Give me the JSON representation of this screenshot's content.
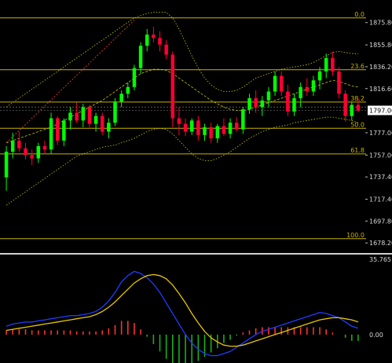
{
  "chart_data": {
    "type": "candlestick",
    "colors": {
      "background": "#000000",
      "bull": "#00ff00",
      "bear": "#ff0033",
      "bollinger": "#c8c800",
      "fib": "#c8b400",
      "trendline": "#c0392b",
      "macd_line": "#1f3cff",
      "signal_line": "#e8c600",
      "hist_pos": "#ff3030",
      "hist_neg": "#18b018",
      "separator": "#d0d0d0"
    },
    "price_axis": {
      "ylim": [
        1672,
        1889
      ],
      "ticks": [
        "1875.80",
        "1855.80",
        "1836.20",
        "1816.60",
        "1797.06",
        "1777.00",
        "1757.00",
        "1737.40",
        "1717.40",
        "1697.80",
        "1678.20"
      ],
      "current_price": "1797.06"
    },
    "fib_levels": [
      {
        "label": "0.0",
        "price": 1880.0
      },
      {
        "label": "23.6",
        "price": 1833.5
      },
      {
        "label": "38.2",
        "price": 1804.5
      },
      {
        "label": "50.0",
        "price": 1781.0
      },
      {
        "label": "61.8",
        "price": 1758.0
      },
      {
        "label": "100.0",
        "price": 1682.0
      }
    ],
    "candles": [
      [
        1737,
        1765,
        1725,
        1760
      ],
      [
        1760,
        1777,
        1754,
        1770
      ],
      [
        1770,
        1778,
        1760,
        1763
      ],
      [
        1763,
        1768,
        1753,
        1757
      ],
      [
        1757,
        1762,
        1748,
        1754
      ],
      [
        1754,
        1768,
        1750,
        1765
      ],
      [
        1765,
        1770,
        1758,
        1762
      ],
      [
        1762,
        1795,
        1758,
        1790
      ],
      [
        1790,
        1792,
        1766,
        1770
      ],
      [
        1770,
        1790,
        1765,
        1788
      ],
      [
        1788,
        1800,
        1780,
        1795
      ],
      [
        1795,
        1804,
        1786,
        1788
      ],
      [
        1788,
        1803,
        1782,
        1800
      ],
      [
        1800,
        1802,
        1782,
        1785
      ],
      [
        1785,
        1795,
        1778,
        1792
      ],
      [
        1792,
        1795,
        1775,
        1778
      ],
      [
        1778,
        1790,
        1772,
        1786
      ],
      [
        1786,
        1808,
        1783,
        1805
      ],
      [
        1805,
        1815,
        1800,
        1812
      ],
      [
        1812,
        1822,
        1808,
        1818
      ],
      [
        1818,
        1838,
        1815,
        1835
      ],
      [
        1835,
        1858,
        1830,
        1855
      ],
      [
        1855,
        1870,
        1850,
        1865
      ],
      [
        1865,
        1872,
        1858,
        1862
      ],
      [
        1862,
        1868,
        1850,
        1856
      ],
      [
        1856,
        1860,
        1843,
        1847
      ],
      [
        1847,
        1850,
        1782,
        1790
      ],
      [
        1790,
        1800,
        1775,
        1785
      ],
      [
        1785,
        1790,
        1774,
        1778
      ],
      [
        1778,
        1790,
        1775,
        1788
      ],
      [
        1788,
        1792,
        1770,
        1775
      ],
      [
        1775,
        1785,
        1770,
        1782
      ],
      [
        1782,
        1786,
        1768,
        1772
      ],
      [
        1772,
        1785,
        1768,
        1783
      ],
      [
        1783,
        1790,
        1774,
        1776
      ],
      [
        1776,
        1790,
        1772,
        1786
      ],
      [
        1786,
        1791,
        1778,
        1780
      ],
      [
        1780,
        1800,
        1776,
        1798
      ],
      [
        1798,
        1812,
        1794,
        1808
      ],
      [
        1808,
        1815,
        1795,
        1800
      ],
      [
        1800,
        1810,
        1792,
        1806
      ],
      [
        1806,
        1818,
        1800,
        1814
      ],
      [
        1814,
        1832,
        1810,
        1828
      ],
      [
        1828,
        1832,
        1810,
        1814
      ],
      [
        1814,
        1820,
        1792,
        1796
      ],
      [
        1796,
        1812,
        1792,
        1808
      ],
      [
        1808,
        1822,
        1800,
        1818
      ],
      [
        1818,
        1826,
        1810,
        1814
      ],
      [
        1814,
        1828,
        1810,
        1824
      ],
      [
        1824,
        1836,
        1816,
        1832
      ],
      [
        1832,
        1848,
        1826,
        1844
      ],
      [
        1844,
        1850,
        1828,
        1832
      ],
      [
        1832,
        1836,
        1808,
        1812
      ],
      [
        1812,
        1815,
        1787,
        1792
      ],
      [
        1792,
        1805,
        1788,
        1802
      ],
      [
        1802,
        1808,
        1796,
        1797
      ]
    ],
    "bollinger": {
      "upper": [
        1800,
        1804,
        1808,
        1812,
        1816,
        1820,
        1824,
        1828,
        1832,
        1836,
        1840,
        1844,
        1848,
        1852,
        1856,
        1860,
        1864,
        1868,
        1872,
        1876,
        1880,
        1882,
        1884,
        1885,
        1885,
        1885,
        1880,
        1870,
        1858,
        1846,
        1835,
        1826,
        1820,
        1816,
        1814,
        1814,
        1815,
        1818,
        1822,
        1826,
        1828,
        1830,
        1832,
        1834,
        1835,
        1836,
        1837,
        1838,
        1840,
        1843,
        1846,
        1849,
        1850,
        1849,
        1848,
        1848
      ],
      "middle": [
        1768,
        1770,
        1772,
        1774,
        1776,
        1778,
        1780,
        1782,
        1785,
        1788,
        1791,
        1794,
        1797,
        1800,
        1803,
        1806,
        1810,
        1814,
        1818,
        1822,
        1826,
        1830,
        1832,
        1834,
        1834,
        1833,
        1830,
        1826,
        1822,
        1818,
        1814,
        1810,
        1806,
        1803,
        1800,
        1798,
        1797,
        1797,
        1798,
        1800,
        1802,
        1804,
        1806,
        1808,
        1810,
        1812,
        1814,
        1816,
        1818,
        1820,
        1822,
        1824,
        1823,
        1821,
        1819,
        1818
      ],
      "lower": [
        1712,
        1716,
        1720,
        1724,
        1728,
        1732,
        1736,
        1740,
        1744,
        1748,
        1752,
        1756,
        1758,
        1760,
        1762,
        1764,
        1765,
        1766,
        1768,
        1770,
        1772,
        1775,
        1778,
        1780,
        1781,
        1780,
        1776,
        1770,
        1764,
        1758,
        1754,
        1752,
        1752,
        1754,
        1757,
        1760,
        1764,
        1768,
        1772,
        1775,
        1778,
        1780,
        1782,
        1783,
        1784,
        1786,
        1787,
        1788,
        1789,
        1790,
        1791,
        1791,
        1790,
        1789,
        1788,
        1786
      ]
    },
    "trendline": {
      "from": [
        0,
        1768
      ],
      "to": [
        20,
        1878
      ]
    },
    "macd": {
      "ylim": [
        -12,
        36.5
      ],
      "ticks": [
        "35.765",
        "0.00"
      ],
      "macd": [
        4,
        5,
        5.5,
        6,
        6,
        6.5,
        7,
        7.5,
        8,
        8.5,
        9,
        9,
        9.5,
        10,
        11,
        13,
        16,
        20,
        25,
        28,
        30,
        29,
        27,
        24,
        20,
        15,
        10,
        5,
        0,
        -4,
        -7,
        -9,
        -10,
        -10,
        -9,
        -8,
        -6,
        -4,
        -2,
        0,
        1.5,
        2.5,
        3.5,
        4.5,
        5.5,
        6.5,
        7.5,
        8.5,
        9.5,
        10.5,
        10,
        9,
        8,
        6,
        4,
        3
      ],
      "signal": [
        2,
        2.5,
        3,
        3.5,
        4,
        4.5,
        5,
        5.5,
        6,
        6.5,
        7,
        7.5,
        8,
        8.5,
        9.5,
        11,
        13,
        15.5,
        18.5,
        21.5,
        24.5,
        26.5,
        28,
        28.5,
        28,
        26.5,
        23.5,
        19.5,
        15,
        10,
        5.5,
        1.5,
        -1.5,
        -3.5,
        -5,
        -5.5,
        -5.5,
        -5,
        -4,
        -3,
        -2,
        -1,
        0,
        1,
        2,
        3,
        4,
        5,
        6,
        7,
        7.5,
        8,
        8,
        7.5,
        7,
        6
      ],
      "histogram": [
        2,
        2.5,
        2.5,
        2.5,
        2,
        2,
        2,
        2,
        2,
        2,
        2,
        1.5,
        1.5,
        1.5,
        1.5,
        2,
        3,
        4.5,
        6.5,
        6.5,
        5.5,
        2.5,
        -1,
        -4.5,
        -8,
        -11.5,
        -13.5,
        -14.5,
        -15,
        -14,
        -12.5,
        -10.5,
        -8.5,
        -6.5,
        -4,
        -2.5,
        -0.5,
        1,
        2,
        3,
        3.5,
        3.5,
        3.5,
        3.5,
        3.5,
        3.5,
        3.5,
        3.5,
        3.5,
        3.5,
        2.5,
        1,
        0,
        -1.5,
        -3,
        -3
      ]
    }
  }
}
